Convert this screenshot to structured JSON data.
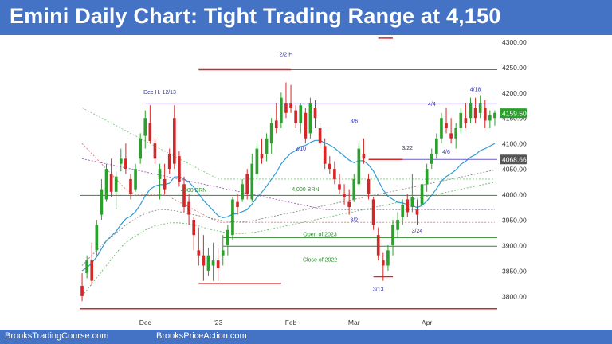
{
  "title": "Emini Daily Chart: Tight Trading Range at 4,150",
  "footer": {
    "left": "BrooksTradingCourse.com",
    "right": "BrooksPriceAction.com"
  },
  "colors": {
    "brand": "#4472c4",
    "bull": "#2ca02c",
    "bear": "#d62728",
    "ema": "#2f9bd6",
    "level_line": "#6a5acd",
    "hline_green": "#2e8b2e"
  },
  "chart_data": {
    "type": "candlestick",
    "ylim": [
      3770,
      4310
    ],
    "y_ticks": [
      3800,
      3850,
      3900,
      3950,
      4000,
      4050,
      4100,
      4150,
      4200,
      4250,
      4300
    ],
    "x_tick_labels": [
      "Dec",
      "'23",
      "Feb",
      "Mar",
      "Apr"
    ],
    "x_tick_index": [
      13,
      28,
      43,
      56,
      71
    ],
    "price_labels": [
      {
        "value": 4159.5,
        "text": "4159.50",
        "color": "#2ca02c"
      },
      {
        "value": 4068.66,
        "text": "4068.66",
        "color": "#555555"
      }
    ],
    "ohlc": [
      [
        3820,
        3845,
        3790,
        3800
      ],
      [
        3845,
        3880,
        3835,
        3870
      ],
      [
        3870,
        3905,
        3820,
        3830
      ],
      [
        3890,
        3950,
        3880,
        3940
      ],
      [
        3960,
        4030,
        3950,
        4010
      ],
      [
        3990,
        4060,
        3985,
        4050
      ],
      [
        4040,
        4070,
        3995,
        4005
      ],
      [
        4005,
        4045,
        3970,
        4035
      ],
      [
        4060,
        4090,
        4045,
        4070
      ],
      [
        4070,
        4100,
        4040,
        4050
      ],
      [
        4030,
        4040,
        3990,
        4000
      ],
      [
        4010,
        4060,
        4005,
        4050
      ],
      [
        4070,
        4120,
        4060,
        4110
      ],
      [
        4115,
        4165,
        4090,
        4150
      ],
      [
        4140,
        4175,
        4100,
        4105
      ],
      [
        4100,
        4110,
        4060,
        4070
      ],
      [
        4030,
        4060,
        3990,
        4050
      ],
      [
        4030,
        4060,
        4000,
        4010
      ],
      [
        4080,
        4090,
        4040,
        4050
      ],
      [
        4150,
        4175,
        4050,
        4060
      ],
      [
        4075,
        4085,
        4015,
        4025
      ],
      [
        4020,
        4035,
        3965,
        3975
      ],
      [
        3985,
        4000,
        3940,
        3960
      ],
      [
        3950,
        3955,
        3890,
        3920
      ],
      [
        3890,
        3935,
        3860,
        3880
      ],
      [
        3880,
        3920,
        3830,
        3860
      ],
      [
        3850,
        3895,
        3840,
        3880
      ],
      [
        3860,
        3905,
        3830,
        3870
      ],
      [
        3870,
        3895,
        3830,
        3855
      ],
      [
        3880,
        3920,
        3860,
        3890
      ],
      [
        3900,
        3940,
        3880,
        3930
      ],
      [
        3920,
        3995,
        3910,
        3990
      ],
      [
        3985,
        4000,
        3960,
        3975
      ],
      [
        3990,
        4030,
        3985,
        4020
      ],
      [
        4040,
        4050,
        3990,
        4000
      ],
      [
        3990,
        4080,
        3985,
        4060
      ],
      [
        4040,
        4100,
        4030,
        4090
      ],
      [
        4080,
        4110,
        4060,
        4070
      ],
      [
        4080,
        4120,
        4065,
        4110
      ],
      [
        4100,
        4150,
        4080,
        4140
      ],
      [
        4145,
        4180,
        4120,
        4130
      ],
      [
        4140,
        4200,
        4130,
        4190
      ],
      [
        4180,
        4220,
        4150,
        4160
      ],
      [
        4180,
        4215,
        4160,
        4170
      ],
      [
        4165,
        4175,
        4130,
        4140
      ],
      [
        4140,
        4180,
        4120,
        4175
      ],
      [
        4160,
        4170,
        4100,
        4110
      ],
      [
        4120,
        4190,
        4110,
        4180
      ],
      [
        4170,
        4185,
        4130,
        4150
      ],
      [
        4130,
        4140,
        4090,
        4100
      ],
      [
        4095,
        4110,
        4050,
        4060
      ],
      [
        4060,
        4075,
        4040,
        4050
      ],
      [
        4050,
        4065,
        4020,
        4030
      ],
      [
        4020,
        4040,
        4000,
        4010
      ],
      [
        4000,
        4020,
        3980,
        3995
      ],
      [
        3985,
        4010,
        3960,
        3975
      ],
      [
        3990,
        4040,
        3985,
        4030
      ],
      [
        4020,
        4100,
        4015,
        4090
      ],
      [
        4080,
        4110,
        4060,
        4070
      ],
      [
        4030,
        4040,
        3990,
        4000
      ],
      [
        3990,
        3995,
        3930,
        3940
      ],
      [
        3920,
        3935,
        3870,
        3880
      ],
      [
        3870,
        3885,
        3830,
        3860
      ],
      [
        3860,
        3900,
        3850,
        3890
      ],
      [
        3900,
        3950,
        3880,
        3940
      ],
      [
        3930,
        3965,
        3915,
        3950
      ],
      [
        3955,
        3990,
        3940,
        3980
      ],
      [
        3990,
        4000,
        3955,
        3965
      ],
      [
        3975,
        4040,
        3965,
        3995
      ],
      [
        3970,
        3990,
        3940,
        3960
      ],
      [
        3980,
        4030,
        3975,
        4020
      ],
      [
        4020,
        4060,
        4005,
        4050
      ],
      [
        4060,
        4090,
        4050,
        4080
      ],
      [
        4080,
        4120,
        4070,
        4110
      ],
      [
        4110,
        4160,
        4100,
        4150
      ],
      [
        4140,
        4170,
        4120,
        4130
      ],
      [
        4120,
        4150,
        4100,
        4110
      ],
      [
        4110,
        4140,
        4090,
        4130
      ],
      [
        4130,
        4170,
        4120,
        4160
      ],
      [
        4150,
        4180,
        4130,
        4140
      ],
      [
        4150,
        4190,
        4140,
        4180
      ],
      [
        4170,
        4190,
        4140,
        4150
      ],
      [
        4160,
        4195,
        4150,
        4180
      ],
      [
        4170,
        4185,
        4130,
        4145
      ],
      [
        4145,
        4165,
        4130,
        4155
      ],
      [
        4150,
        4165,
        4135,
        4160
      ]
    ],
    "series": [
      {
        "values": [
          3850,
          3856,
          3865,
          3877,
          3893,
          3909,
          3918,
          3927,
          3941,
          3952,
          3957,
          3966,
          3980,
          3997,
          4010,
          4016,
          4019,
          4019,
          4022,
          4034,
          4035,
          4030,
          4024,
          4014,
          4001,
          3988,
          3978,
          3968,
          3958,
          3954,
          3956,
          3961,
          3962,
          3966,
          3970,
          3981,
          3994,
          4004,
          4016,
          4030,
          4043,
          4060,
          4071,
          4081,
          4086,
          4094,
          4096,
          4102,
          4106,
          4106,
          4101,
          4097,
          4091,
          4083,
          4075,
          4067,
          4062,
          4066,
          4066,
          4058,
          4046,
          4027,
          4009,
          3996,
          3990,
          3984,
          3983,
          3980,
          3978,
          3974,
          3978,
          3987,
          3998,
          4011,
          4026,
          4035,
          4041,
          4048,
          4059,
          4065,
          4073,
          4078,
          4086,
          4090,
          4095,
          4100
        ]
      },
      {
        "values": [
          4170,
          4165,
          4160,
          4155,
          4150,
          4145,
          4140,
          4135,
          4130,
          4125,
          4120,
          4115,
          4110,
          4105,
          4100,
          4095,
          4090,
          4085,
          4080,
          4075,
          4070,
          4065,
          4060,
          4055,
          4050,
          4045,
          4040,
          4035,
          4030,
          4030,
          4030,
          4030,
          4030,
          4030,
          4030,
          4030,
          4030,
          4030,
          4030,
          4030,
          4030,
          4030,
          4030,
          4030,
          4030,
          4030,
          4030,
          4030,
          4030,
          4030,
          4030,
          4030,
          4030,
          4030,
          4030,
          4030,
          4030,
          4030,
          4030,
          4030,
          4030,
          4030,
          4030,
          4030,
          4030,
          4030,
          4030,
          4030,
          4030,
          4030,
          4030,
          4030,
          4030,
          4030,
          4030,
          4030,
          4030,
          4030,
          4030,
          4030,
          4030,
          4030,
          4030,
          4030,
          4030,
          4030
        ]
      },
      {
        "values": [
          4100,
          4090,
          4080,
          4070,
          4060,
          4050,
          4040,
          4030,
          4020,
          4010,
          4005,
          4000,
          4000,
          4000,
          4000,
          4000,
          4000,
          4000,
          3995,
          3990,
          3985,
          3980,
          3975,
          3970,
          3965,
          3960,
          3955,
          3950,
          3945,
          3945,
          3945,
          3945,
          3945,
          3945,
          3945,
          3945,
          3945,
          3945,
          3945,
          3945,
          3945,
          3945,
          3945,
          3945,
          3945,
          3945,
          3945,
          3945,
          3945,
          3945,
          3945,
          3945,
          3945,
          3945,
          3945,
          3945,
          3945,
          3945,
          3945,
          3945,
          3945,
          3945,
          3945,
          3945,
          3945,
          3945,
          3945,
          3945,
          3945,
          3945,
          3945,
          3945,
          3945,
          3945,
          3945,
          3945,
          3945,
          3945,
          3945,
          3945,
          3945,
          3945,
          3945,
          3945,
          3945,
          3945
        ]
      },
      {
        "values": [
          4070,
          4068,
          4066,
          4064,
          4062,
          4060,
          4058,
          4056,
          4054,
          4052,
          4050,
          4048,
          4046,
          4044,
          4042,
          4040,
          4038,
          4036,
          4034,
          4032,
          4030,
          4028,
          4026,
          4024,
          4022,
          4020,
          4018,
          4016,
          4014,
          4012,
          4010,
          4008,
          4006,
          4004,
          4002,
          4000,
          3998,
          3996,
          3994,
          3992,
          3990,
          3988,
          3986,
          3984,
          3982,
          3980,
          3978,
          3976,
          3974,
          3972,
          3970,
          3970,
          3970,
          3970,
          3970,
          3970,
          3970,
          3970,
          3970,
          3970,
          3970,
          3970,
          3970,
          3970,
          3970,
          3970,
          3970,
          3970,
          3970,
          3970,
          3970,
          3970,
          3970,
          3970,
          3970,
          3970,
          3970,
          3970,
          3970,
          3970,
          3970,
          3970,
          3970,
          3970,
          3970,
          3970
        ]
      },
      {
        "values": [
          3860,
          3870,
          3880,
          3890,
          3900,
          3908,
          3916,
          3924,
          3932,
          3940,
          3946,
          3952,
          3958,
          3962,
          3966,
          3968,
          3970,
          3970,
          3969,
          3968,
          3966,
          3964,
          3962,
          3960,
          3958,
          3956,
          3954,
          3952,
          3950,
          3948,
          3947,
          3946,
          3946,
          3946,
          3947,
          3948,
          3950,
          3952,
          3954,
          3956,
          3958,
          3960,
          3962,
          3964,
          3966,
          3968,
          3970,
          3972,
          3974,
          3976,
          3978,
          3980,
          3982,
          3984,
          3986,
          3988,
          3990,
          3992,
          3994,
          3996,
          3998,
          4000,
          4002,
          4004,
          4006,
          4008,
          4010,
          4012,
          4014,
          4016,
          4018,
          4020,
          4022,
          4024,
          4026,
          4028,
          4030,
          4032,
          4034,
          4036,
          4038,
          4040,
          4042,
          4044,
          4046,
          4048
        ]
      },
      {
        "values": [
          3800,
          3812,
          3824,
          3836,
          3848,
          3860,
          3872,
          3884,
          3896,
          3905,
          3912,
          3918,
          3924,
          3930,
          3934,
          3938,
          3940,
          3942,
          3944,
          3944,
          3944,
          3943,
          3942,
          3940,
          3938,
          3935,
          3932,
          3930,
          3928,
          3926,
          3925,
          3924,
          3923,
          3923,
          3924,
          3925,
          3926,
          3928,
          3930,
          3932,
          3934,
          3936,
          3938,
          3940,
          3942,
          3944,
          3946,
          3948,
          3950,
          3952,
          3954,
          3956,
          3958,
          3960,
          3962,
          3964,
          3966,
          3968,
          3970,
          3972,
          3974,
          3976,
          3978,
          3980,
          3982,
          3984,
          3986,
          3988,
          3990,
          3992,
          3994,
          3996,
          3998,
          4000,
          4002,
          4004,
          4006,
          4008,
          4010,
          4012,
          4014,
          4016,
          4018,
          4020,
          4022,
          4024
        ]
      }
    ],
    "hlines": [
      {
        "value": 4245,
        "from": 36,
        "to": 86,
        "color": "#6a5acd",
        "width": 1
      },
      {
        "value": 4178,
        "from": 13,
        "to": 86,
        "color": "#6a5acd",
        "width": 1
      },
      {
        "value": 4068.66,
        "from": 63,
        "to": 86,
        "color": "#6a5acd",
        "width": 1
      },
      {
        "value": 3998,
        "from": 0,
        "to": 86,
        "color": "#2e8b2e",
        "width": 1
      },
      {
        "value": 3915,
        "from": 29,
        "to": 86,
        "color": "#2e8b2e",
        "width": 1
      },
      {
        "value": 3898,
        "from": 29,
        "to": 86,
        "color": "#2e8b2e",
        "width": 1
      },
      {
        "value": 4245,
        "from": 24,
        "to": 43,
        "color": "#d62728",
        "width": 1.5
      },
      {
        "value": 4068.66,
        "from": 59,
        "to": 66,
        "color": "#d62728",
        "width": 1.5
      },
      {
        "value": 3838,
        "from": 60,
        "to": 64,
        "color": "#d62728",
        "width": 1.5
      },
      {
        "value": 3825,
        "from": 24,
        "to": 41,
        "color": "#d62728",
        "width": 1.5
      },
      {
        "value": 3775,
        "from": 0,
        "to": 86,
        "color": "#d62728",
        "width": 1.5
      },
      {
        "value": 4307,
        "from": 61,
        "to": 64,
        "color": "#d62728",
        "width": 1.5
      }
    ],
    "annotations": [
      {
        "text": "2/2 H",
        "idx": 42,
        "value": 4272,
        "color": "#3333aa"
      },
      {
        "text": "Dec H. 12/13",
        "idx": 16,
        "value": 4197,
        "color": "#3333aa"
      },
      {
        "text": "4/18",
        "idx": 81,
        "value": 4203,
        "color": "#3333aa"
      },
      {
        "text": "4/4",
        "idx": 72,
        "value": 4174,
        "color": "#3333aa"
      },
      {
        "text": "3/6",
        "idx": 56,
        "value": 4140,
        "color": "#3333aa"
      },
      {
        "text": "3/22",
        "idx": 67,
        "value": 4088,
        "color": "#3333aa"
      },
      {
        "text": "4/6",
        "idx": 75,
        "value": 4080,
        "color": "#3333aa"
      },
      {
        "text": "2/10",
        "idx": 45,
        "value": 4086,
        "color": "#3333aa"
      },
      {
        "text": "4000 BRN",
        "idx": 23,
        "value": 4005,
        "color": "#2e8b2e"
      },
      {
        "text": "4,000 BRN",
        "idx": 46,
        "value": 4006,
        "color": "#2e8b2e"
      },
      {
        "text": "3/2",
        "idx": 56,
        "value": 3946,
        "color": "#3333aa"
      },
      {
        "text": "Open of 2023",
        "idx": 49,
        "value": 3918,
        "color": "#2e8b2e"
      },
      {
        "text": "3/24",
        "idx": 69,
        "value": 3925,
        "color": "#3333aa"
      },
      {
        "text": "Close of 2022",
        "idx": 49,
        "value": 3868,
        "color": "#2e8b2e"
      },
      {
        "text": "3/13",
        "idx": 61,
        "value": 3810,
        "color": "#3333aa"
      }
    ]
  }
}
